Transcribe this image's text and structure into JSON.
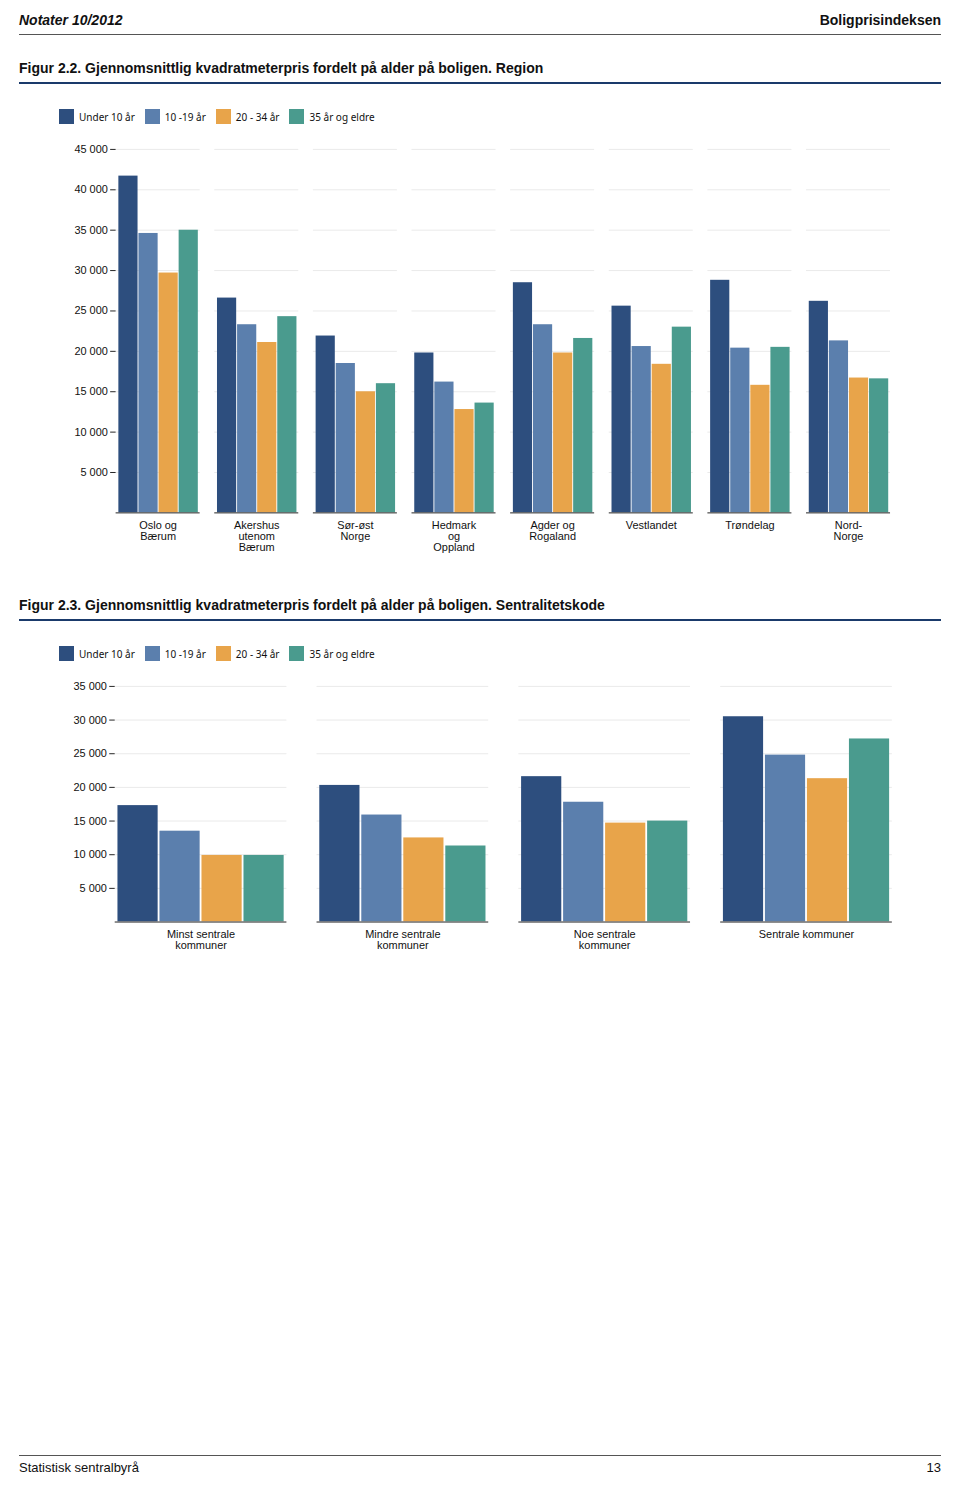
{
  "annotations": [
    "Notater 10/2012",
    "Boligprisindeksen",
    "Statistisk sentralbyrå",
    "13"
  ],
  "chart_data": [
    {
      "type": "bar",
      "title": "Figur 2.2. Gjennomsnittlig kvadratmeterpris fordelt på alder på boligen. Region",
      "categories": [
        "Oslo og\nBærum",
        "Akershus\nutenom\nBærum",
        "Sør-øst\nNorge",
        "Hedmark\nog\nOppland",
        "Agder og\nRogaland",
        "Vestlandet",
        "Trøndelag",
        "Nord-\nNorge"
      ],
      "series": [
        {
          "name": "Under 10 år",
          "color": "#2d4e7e",
          "values": [
            41700,
            26600,
            21900,
            19800,
            28500,
            25600,
            28800,
            26200
          ]
        },
        {
          "name": "10 -19 år",
          "color": "#5b7fad",
          "values": [
            34600,
            23300,
            18500,
            16200,
            23300,
            20600,
            20400,
            21300
          ]
        },
        {
          "name": "20 - 34 år",
          "color": "#e8a44a",
          "values": [
            29700,
            21100,
            15000,
            12800,
            19800,
            18400,
            15800,
            16700
          ]
        },
        {
          "name": "35 år og eldre",
          "color": "#4a9b8e",
          "values": [
            35000,
            24300,
            16000,
            13600,
            21600,
            23000,
            20500,
            16600
          ]
        }
      ],
      "ylim": [
        0,
        45000
      ],
      "yticks": [
        {
          "value": 5000,
          "label": "5 000"
        },
        {
          "value": 10000,
          "label": "10 000"
        },
        {
          "value": 15000,
          "label": "15 000"
        },
        {
          "value": 20000,
          "label": "20 000"
        },
        {
          "value": 25000,
          "label": "25 000"
        },
        {
          "value": 30000,
          "label": "30 000"
        },
        {
          "value": 35000,
          "label": "35 000"
        },
        {
          "value": 40000,
          "label": "40 000"
        },
        {
          "value": 45000,
          "label": "45 000"
        }
      ],
      "grid": true,
      "legend": "top"
    },
    {
      "type": "bar",
      "title": "Figur 2.3. Gjennomsnittlig kvadratmeterpris fordelt på alder på boligen. Sentralitetskode",
      "categories": [
        "Minst sentrale\nkommuner",
        "Mindre sentrale\nkommuner",
        "Noe sentrale\nkommuner",
        "Sentrale kommuner"
      ],
      "series": [
        {
          "name": "Under 10 år",
          "color": "#2d4e7e",
          "values": [
            17300,
            20300,
            21600,
            30500
          ]
        },
        {
          "name": "10 -19 år",
          "color": "#5b7fad",
          "values": [
            13500,
            15900,
            17800,
            24800
          ]
        },
        {
          "name": "20 - 34 år",
          "color": "#e8a44a",
          "values": [
            9900,
            12500,
            14700,
            21300
          ]
        },
        {
          "name": "35 år og eldre",
          "color": "#4a9b8e",
          "values": [
            9900,
            11300,
            15000,
            27200
          ]
        }
      ],
      "ylim": [
        0,
        35000
      ],
      "yticks": [
        {
          "value": 5000,
          "label": "5 000"
        },
        {
          "value": 10000,
          "label": "10 000"
        },
        {
          "value": 15000,
          "label": "15 000"
        },
        {
          "value": 20000,
          "label": "20 000"
        },
        {
          "value": 25000,
          "label": "25 000"
        },
        {
          "value": 30000,
          "label": "30 000"
        },
        {
          "value": 35000,
          "label": "35 000"
        }
      ],
      "grid": true,
      "legend": "top"
    }
  ]
}
